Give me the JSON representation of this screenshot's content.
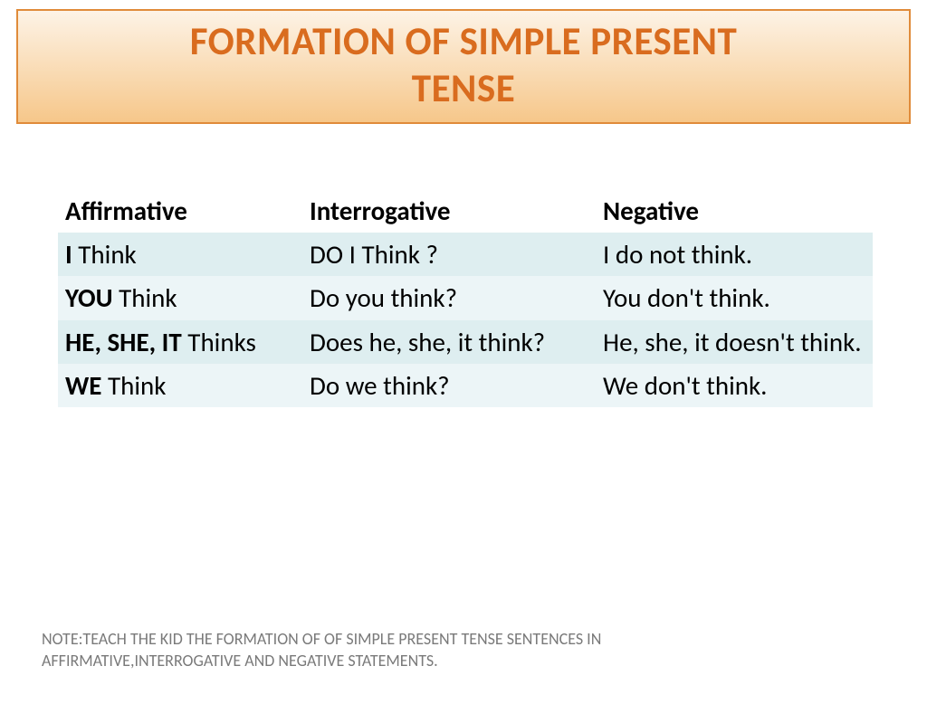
{
  "title": {
    "line1": "FORMATION OF SIMPLE PRESENT",
    "line2": "TENSE",
    "text_color": "#d96c1f",
    "border_color": "#e08b3a",
    "gradient_top": "#fdf3e6",
    "gradient_bottom": "#f6c78a",
    "font_size_pt": 32
  },
  "table": {
    "columns": [
      "Affirmative",
      "Interrogative",
      "Negative"
    ],
    "row_bg_a": "#deeef0",
    "row_bg_b": "#ecf5f7",
    "header_bg": "#ffffff",
    "font_size_pt": 22,
    "rows": [
      {
        "aff_bold": "I",
        "aff_rest": " Think",
        "int": "DO I Think ?",
        "neg": "I do not think."
      },
      {
        "aff_bold": "YOU",
        "aff_rest": " Think",
        "int": "Do you think?",
        "neg": "You don't think."
      },
      {
        "aff_bold": "HE, SHE, IT",
        "aff_rest": " Thinks",
        "int": "Does he, she, it think?",
        "neg": "He, she, it doesn't think."
      },
      {
        "aff_bold": "WE",
        "aff_rest": " Think",
        "int": "Do we think?",
        "neg": "We don't think."
      }
    ]
  },
  "note": {
    "line1": "NOTE:TEACH THE KID THE FORMATION OF OF SIMPLE PRESENT TENSE SENTENCES IN",
    "line2": "AFFIRMATIVE,INTERROGATIVE AND NEGATIVE STATEMENTS.",
    "color": "#7a7a7a",
    "font_size_pt": 14
  }
}
